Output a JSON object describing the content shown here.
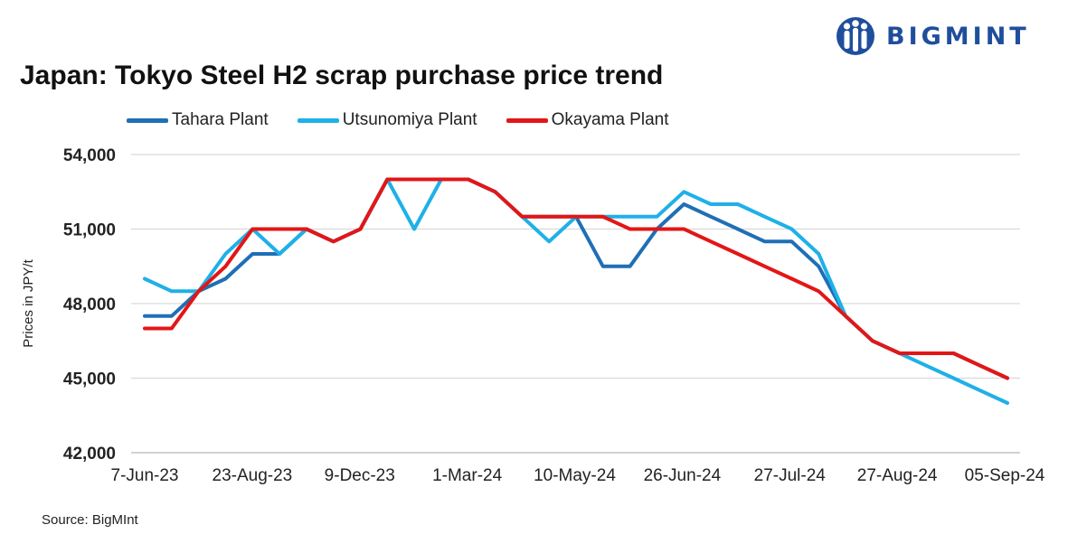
{
  "brand": {
    "name": "BIGMINT",
    "color": "#1f4e9c"
  },
  "source": "Source: BigMInt",
  "chart_data": {
    "type": "line",
    "title": "Japan: Tokyo Steel H2 scrap purchase price trend",
    "xlabel": "",
    "ylabel": "Prices in JPY/t",
    "ylim": [
      42000,
      54000
    ],
    "yticks": [
      42000,
      45000,
      48000,
      51000,
      54000
    ],
    "ytick_labels": [
      "42,000",
      "45,000",
      "48,000",
      "51,000",
      "54,000"
    ],
    "xtick_labels": [
      "7-Jun-23",
      "23-Aug-23",
      "9-Dec-23",
      "1-Mar-24",
      "10-May-24",
      "26-Jun-24",
      "27-Jul-24",
      "27-Aug-24",
      "05-Sep-24"
    ],
    "n_points": 33,
    "grid": true,
    "legend_position": "top",
    "series": [
      {
        "name": "Tahara Plant",
        "color": "#1f6fb5",
        "values": [
          47500,
          47500,
          48500,
          49000,
          50000,
          50000,
          51000,
          50500,
          51000,
          53000,
          53000,
          53000,
          53000,
          52500,
          51500,
          51500,
          51500,
          49500,
          49500,
          51000,
          52000,
          51500,
          51000,
          50500,
          50500,
          49500,
          47500,
          46500,
          46000,
          46000,
          46000,
          45500,
          45000
        ]
      },
      {
        "name": "Utsunomiya Plant",
        "color": "#1fb0e8",
        "values": [
          49000,
          48500,
          48500,
          50000,
          51000,
          50000,
          51000,
          50500,
          51000,
          53000,
          51000,
          53000,
          53000,
          52500,
          51500,
          50500,
          51500,
          51500,
          51500,
          51500,
          52500,
          52000,
          52000,
          51500,
          51000,
          50000,
          47500,
          46500,
          46000,
          45500,
          45000,
          44500,
          44000
        ]
      },
      {
        "name": "Okayama Plant",
        "color": "#e31616",
        "values": [
          47000,
          47000,
          48500,
          49500,
          51000,
          51000,
          51000,
          50500,
          51000,
          53000,
          53000,
          53000,
          53000,
          52500,
          51500,
          51500,
          51500,
          51500,
          51000,
          51000,
          51000,
          50500,
          50000,
          49500,
          49000,
          48500,
          47500,
          46500,
          46000,
          46000,
          46000,
          45500,
          45000
        ]
      }
    ]
  }
}
